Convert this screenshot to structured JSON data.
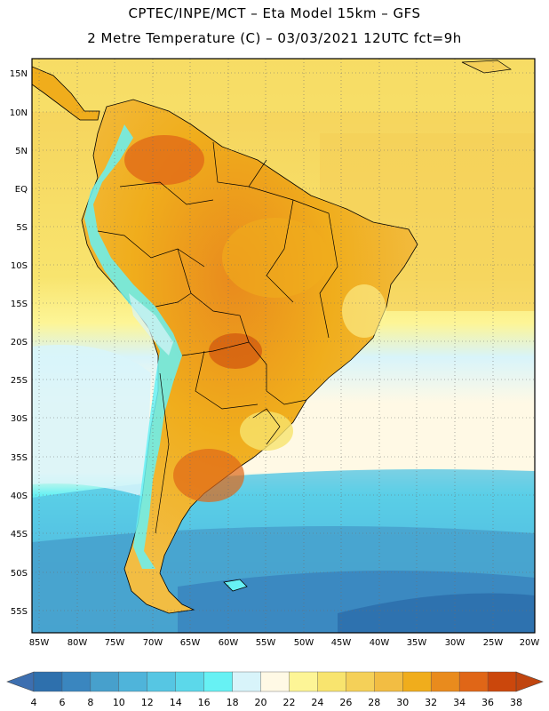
{
  "header": {
    "title_line1": "CPTEC/INPE/MCT –  Eta Model 15km – GFS",
    "title_line2": "2 Metre Temperature (C) – 03/03/2021 12UTC fct=9h"
  },
  "map": {
    "region": "South America",
    "lat_labels": [
      "15N",
      "10N",
      "5N",
      "EQ",
      "5S",
      "10S",
      "15S",
      "20S",
      "25S",
      "30S",
      "35S",
      "40S",
      "45S",
      "50S",
      "55S"
    ],
    "lon_labels": [
      "85W",
      "80W",
      "75W",
      "70W",
      "65W",
      "60W",
      "55W",
      "50W",
      "45W",
      "40W",
      "35W",
      "30W",
      "25W",
      "20W"
    ]
  },
  "colorbar": {
    "labels": [
      "4",
      "6",
      "8",
      "10",
      "12",
      "14",
      "16",
      "18",
      "20",
      "22",
      "24",
      "26",
      "28",
      "30",
      "32",
      "34",
      "36",
      "38"
    ],
    "colors": [
      "#2e70ad",
      "#3a86bf",
      "#47a0cc",
      "#4fb4da",
      "#56c6e3",
      "#5cd8ea",
      "#67f1f4",
      "#d8f4fa",
      "#fff9e5",
      "#fdf596",
      "#f8e46e",
      "#f5d058",
      "#f2bd43",
      "#f0ad1c",
      "#e98b1d",
      "#e06617",
      "#cb470c"
    ],
    "low_arrow_color": "#3d6fb0",
    "high_arrow_color": "#c0450f"
  }
}
